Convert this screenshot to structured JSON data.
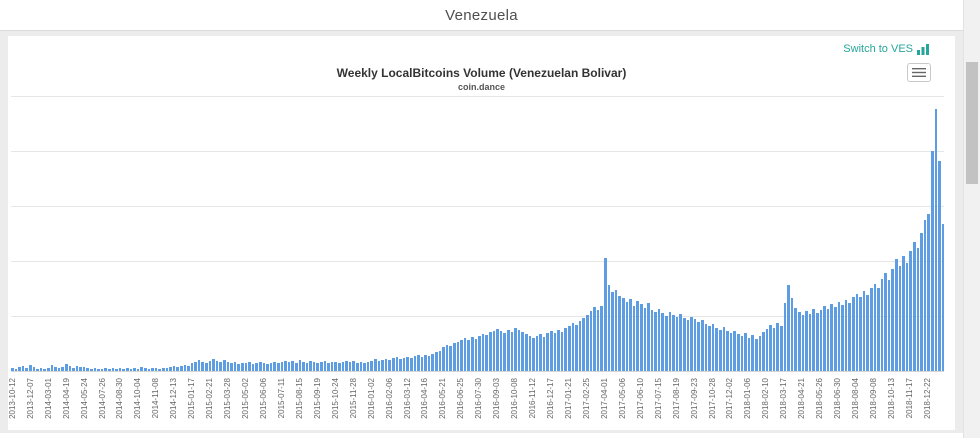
{
  "header": {
    "title": "Venezuela"
  },
  "chart": {
    "switch_link_label": "Switch to VES",
    "switch_link_icon": "bar-chart-icon",
    "context_menu_icon": "hamburger-menu-icon"
  },
  "colors": {
    "accent": "#26a69a",
    "bar": "#5f9de2",
    "grid": "#e6e6e6"
  },
  "chart_data": {
    "type": "bar",
    "title": "Weekly LocalBitcoins Volume (Venezuelan Bolivar)",
    "subtitle": "coin.dance",
    "xlabel": "",
    "ylabel": "",
    "y_axis_labels_visible": false,
    "units": "relative height, % of plot maximum (no y-axis tick labels visible)",
    "ymax": 105,
    "grid": true,
    "label_every": 5,
    "x_labels": [
      "2013-10-12",
      "2013-12-07",
      "2014-03-01",
      "2014-04-19",
      "2014-05-24",
      "2014-07-26",
      "2014-08-30",
      "2014-10-04",
      "2014-11-08",
      "2014-12-13",
      "2015-01-17",
      "2015-02-21",
      "2015-03-28",
      "2015-05-02",
      "2015-06-06",
      "2015-07-11",
      "2015-08-15",
      "2015-09-19",
      "2015-10-24",
      "2015-11-28",
      "2016-01-02",
      "2016-02-06",
      "2016-03-12",
      "2016-04-16",
      "2016-05-21",
      "2016-06-25",
      "2016-07-30",
      "2016-09-03",
      "2016-10-08",
      "2016-11-12",
      "2016-12-17",
      "2017-01-21",
      "2017-02-25",
      "2017-04-01",
      "2017-05-06",
      "2017-06-10",
      "2017-07-15",
      "2017-08-19",
      "2017-09-23",
      "2017-10-28",
      "2017-12-02",
      "2018-01-06",
      "2018-02-10",
      "2018-03-17",
      "2018-04-21",
      "2018-05-26",
      "2018-06-30",
      "2018-08-04",
      "2018-09-08",
      "2018-10-13",
      "2018-11-17",
      "2018-12-22"
    ],
    "values": [
      1.0,
      0.6,
      1.6,
      2.0,
      1.2,
      2.4,
      1.4,
      0.8,
      1.0,
      0.6,
      1.2,
      2.2,
      1.6,
      1.0,
      1.4,
      2.6,
      1.8,
      1.2,
      2.0,
      1.4,
      1.6,
      1.0,
      0.8,
      1.2,
      0.8,
      0.8,
      1.2,
      0.6,
      1.0,
      0.8,
      1.0,
      0.6,
      1.2,
      0.8,
      1.0,
      0.8,
      1.4,
      1.0,
      0.8,
      1.2,
      1.0,
      0.8,
      1.2,
      1.0,
      1.4,
      1.8,
      1.4,
      2.0,
      2.4,
      2.0,
      3.2,
      3.6,
      4.2,
      3.4,
      3.0,
      4.0,
      4.6,
      3.8,
      3.4,
      4.2,
      3.6,
      3.0,
      3.4,
      2.8,
      3.2,
      3.0,
      3.4,
      2.8,
      3.2,
      3.6,
      3.2,
      2.8,
      3.0,
      3.4,
      3.0,
      3.6,
      4.0,
      3.4,
      3.8,
      3.2,
      4.2,
      3.6,
      3.2,
      3.8,
      3.4,
      3.0,
      3.4,
      3.8,
      3.2,
      3.6,
      3.4,
      3.0,
      3.6,
      4.0,
      3.4,
      3.8,
      3.2,
      3.6,
      3.0,
      3.4,
      4.0,
      4.4,
      3.8,
      4.2,
      4.6,
      4.2,
      4.8,
      5.2,
      4.6,
      5.0,
      5.4,
      5.0,
      5.6,
      6.0,
      5.4,
      6.2,
      5.8,
      6.6,
      7.2,
      7.8,
      9.0,
      10.0,
      9.4,
      10.6,
      11.2,
      11.8,
      12.6,
      12.0,
      13.0,
      12.4,
      13.4,
      14.2,
      13.6,
      14.8,
      15.4,
      16.2,
      15.4,
      14.6,
      15.8,
      15.0,
      16.6,
      15.6,
      14.8,
      14.0,
      13.2,
      12.6,
      13.4,
      14.2,
      13.0,
      14.6,
      15.2,
      14.4,
      15.8,
      15.0,
      16.4,
      17.2,
      18.4,
      17.6,
      19.0,
      20.2,
      21.4,
      23.0,
      24.6,
      23.4,
      25.0,
      43.0,
      33.0,
      30.0,
      31.0,
      28.5,
      28.0,
      26.2,
      27.4,
      25.0,
      26.6,
      25.4,
      24.0,
      25.8,
      23.4,
      22.6,
      23.8,
      22.2,
      21.0,
      22.6,
      21.4,
      20.6,
      21.8,
      20.2,
      19.4,
      20.8,
      19.8,
      18.6,
      19.4,
      18.0,
      17.2,
      17.8,
      16.6,
      15.8,
      16.8,
      15.4,
      14.6,
      15.2,
      14.0,
      13.4,
      14.4,
      12.6,
      13.6,
      12.2,
      13.2,
      14.8,
      16.0,
      17.4,
      16.4,
      18.2,
      17.0,
      26.0,
      33.0,
      28.0,
      24.0,
      22.4,
      21.2,
      22.8,
      21.6,
      23.6,
      22.0,
      23.2,
      24.8,
      23.8,
      25.6,
      24.4,
      26.4,
      25.2,
      27.2,
      26.0,
      28.2,
      29.4,
      28.2,
      30.6,
      29.0,
      31.8,
      33.4,
      31.6,
      35.0,
      37.4,
      34.6,
      39.0,
      42.6,
      40.2,
      44.0,
      41.4,
      46.0,
      49.4,
      47.0,
      52.8,
      57.6,
      60.0,
      84.0,
      100.0,
      80.0,
      56.0
    ]
  }
}
